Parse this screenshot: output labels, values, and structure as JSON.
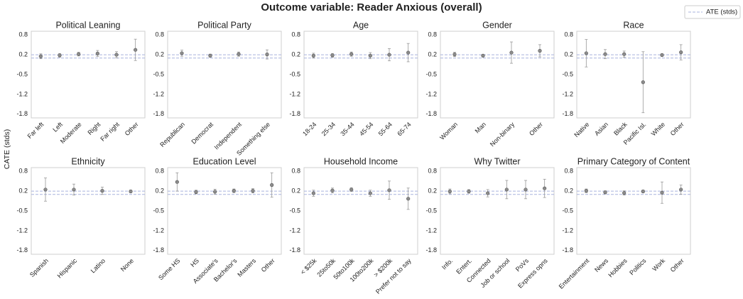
{
  "title": "Outcome variable: Reader Anxious (overall)",
  "y_label": "CATE (stds)",
  "reference": {
    "name": "ATE (stds)",
    "color": "#a9b3dd",
    "values": [
      0.15,
      0.04
    ]
  },
  "chart_data": [
    {
      "type": "errorbar",
      "title": "Political Leaning",
      "color": "#8c8c8c",
      "categories": [
        "Far left",
        "Left",
        "Moderate",
        "Right",
        "Far right",
        "Other"
      ],
      "values": [
        0.1,
        0.13,
        0.17,
        0.19,
        0.15,
        0.31
      ],
      "errors": [
        0.08,
        0.06,
        0.06,
        0.1,
        0.1,
        0.35
      ],
      "ylim": [
        -1.92,
        0.92
      ],
      "yticks": [
        0.8,
        {
          "value": 0.15,
          "label": "0.2"
        },
        -0.5,
        {
          "value": -1.15,
          "label": "-1.2"
        },
        -1.8
      ]
    },
    {
      "type": "errorbar",
      "title": "Political Party",
      "color": "#8c8c8c",
      "categories": [
        "Republican",
        "Democrat",
        "Independent",
        "Something else"
      ],
      "values": [
        0.2,
        0.12,
        0.17,
        0.16
      ],
      "errors": [
        0.1,
        0.05,
        0.07,
        0.15
      ],
      "ylim": [
        -1.92,
        0.92
      ],
      "yticks": [
        0.8,
        {
          "value": 0.15,
          "label": "0.2"
        },
        -0.5,
        {
          "value": -1.15,
          "label": "-1.2"
        },
        -1.8
      ]
    },
    {
      "type": "errorbar",
      "title": "Age",
      "color": "#8c8c8c",
      "categories": [
        "18-24",
        "25-34",
        "35-44",
        "45-54",
        "55-64",
        "65-74"
      ],
      "values": [
        0.12,
        0.13,
        0.17,
        0.12,
        0.15,
        0.22
      ],
      "errors": [
        0.08,
        0.06,
        0.07,
        0.1,
        0.2,
        0.3
      ],
      "ylim": [
        -1.92,
        0.92
      ],
      "yticks": [
        0.8,
        {
          "value": 0.15,
          "label": "0.2"
        },
        -0.5,
        {
          "value": -1.15,
          "label": "-1.2"
        },
        -1.8
      ]
    },
    {
      "type": "errorbar",
      "title": "Gender",
      "color": "#8c8c8c",
      "categories": [
        "Woman",
        "Man",
        "Non-binary",
        "Other"
      ],
      "values": [
        0.16,
        0.12,
        0.22,
        0.28
      ],
      "errors": [
        0.07,
        0.04,
        0.35,
        0.2
      ],
      "ylim": [
        -1.92,
        0.92
      ],
      "yticks": [
        0.8,
        {
          "value": 0.15,
          "label": "0.2"
        },
        -0.5,
        {
          "value": -1.15,
          "label": "-1.2"
        },
        -1.8
      ]
    },
    {
      "type": "errorbar",
      "title": "Race",
      "color": "#8c8c8c",
      "categories": [
        "Native",
        "Asian",
        "Black",
        "Pacific Isl.",
        "White",
        "Other"
      ],
      "values": [
        0.2,
        0.17,
        0.17,
        -0.75,
        0.14,
        0.23
      ],
      "errors": [
        0.45,
        0.15,
        0.1,
        1.0,
        0.04,
        0.25
      ],
      "ylim": [
        -1.92,
        0.92
      ],
      "yticks": [
        0.8,
        {
          "value": 0.15,
          "label": "0.2"
        },
        -0.5,
        {
          "value": -1.15,
          "label": "-1.2"
        },
        -1.8
      ]
    },
    {
      "type": "errorbar",
      "title": "Ethnicity",
      "color": "#8c8c8c",
      "categories": [
        "Spanish",
        "Hispanic",
        "Latino",
        "None"
      ],
      "values": [
        0.2,
        0.2,
        0.16,
        0.14
      ],
      "errors": [
        0.38,
        0.18,
        0.12,
        0.04
      ],
      "ylim": [
        -1.92,
        0.92
      ],
      "yticks": [
        0.8,
        {
          "value": 0.15,
          "label": "0.2"
        },
        -0.5,
        {
          "value": -1.15,
          "label": "-1.2"
        },
        -1.8
      ]
    },
    {
      "type": "errorbar",
      "title": "Education Level",
      "color": "#8c8c8c",
      "categories": [
        "Some HS",
        "HS",
        "Associate's",
        "Bachelor's",
        "Masters",
        "Other"
      ],
      "values": [
        0.45,
        0.12,
        0.13,
        0.16,
        0.16,
        0.35
      ],
      "errors": [
        0.3,
        0.06,
        0.08,
        0.06,
        0.07,
        0.4
      ],
      "ylim": [
        -1.92,
        0.92
      ],
      "yticks": [
        0.8,
        {
          "value": 0.15,
          "label": "0.2"
        },
        -0.5,
        {
          "value": -1.15,
          "label": "-1.2"
        },
        -1.8
      ]
    },
    {
      "type": "errorbar",
      "title": "Household Income",
      "color": "#8c8c8c",
      "categories": [
        "< $25k",
        "25to50k",
        "50to100k",
        "100to200k",
        "> $200k",
        "Prefer not to say"
      ],
      "values": [
        0.08,
        0.17,
        0.2,
        0.08,
        0.18,
        -0.1
      ],
      "errors": [
        0.1,
        0.08,
        0.06,
        0.1,
        0.3,
        0.35
      ],
      "ylim": [
        -1.92,
        0.92
      ],
      "yticks": [
        0.8,
        {
          "value": 0.15,
          "label": "0.2"
        },
        -0.5,
        {
          "value": -1.15,
          "label": "-1.2"
        },
        -1.8
      ]
    },
    {
      "type": "errorbar",
      "title": "Why Twitter",
      "color": "#8c8c8c",
      "categories": [
        "Info.",
        "Entert.",
        "Connected",
        "Job or school",
        "PoVs",
        "Express opns"
      ],
      "values": [
        0.14,
        0.14,
        0.08,
        0.2,
        0.2,
        0.24
      ],
      "errors": [
        0.08,
        0.06,
        0.12,
        0.3,
        0.3,
        0.3
      ],
      "ylim": [
        -1.92,
        0.92
      ],
      "yticks": [
        0.8,
        {
          "value": 0.15,
          "label": "0.2"
        },
        -0.5,
        {
          "value": -1.15,
          "label": "-1.2"
        },
        -1.8
      ]
    },
    {
      "type": "errorbar",
      "title": "Primary Category of Content",
      "color": "#8c8c8c",
      "categories": [
        "Entertainment",
        "News",
        "Hobbies",
        "Politics",
        "Work",
        "Other"
      ],
      "values": [
        0.16,
        0.11,
        0.09,
        0.14,
        0.1,
        0.2
      ],
      "errors": [
        0.06,
        0.05,
        0.07,
        0.04,
        0.35,
        0.15
      ],
      "ylim": [
        -1.92,
        0.92
      ],
      "yticks": [
        0.8,
        {
          "value": 0.15,
          "label": "0.2"
        },
        -0.5,
        {
          "value": -1.15,
          "label": "-1.2"
        },
        -1.8
      ]
    }
  ]
}
